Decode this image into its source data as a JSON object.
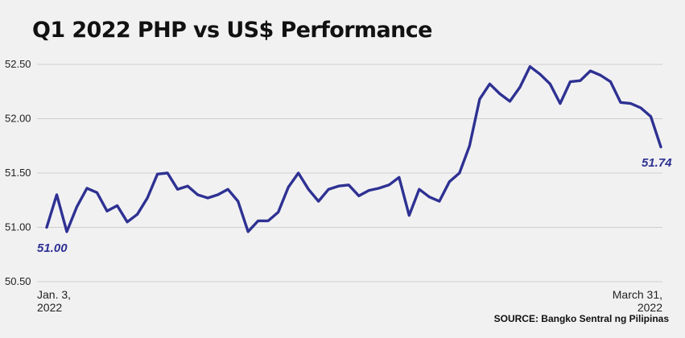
{
  "chart_data": {
    "type": "line",
    "title": "Q1 2022 PHP vs US$ Performance",
    "xlabel": "",
    "ylabel": "",
    "ylim": [
      50.5,
      52.5
    ],
    "yticks": [
      "52.50",
      "52.00",
      "51.50",
      "51.00",
      "50.50"
    ],
    "x_start_label": [
      "Jan. 3,",
      "2022"
    ],
    "x_end_label": [
      "March 31,",
      "2022"
    ],
    "grid": true,
    "line_color": "#2e3192",
    "start_label": "51.00",
    "end_label": "51.74",
    "values": [
      51.0,
      51.3,
      50.96,
      51.19,
      51.36,
      51.32,
      51.15,
      51.2,
      51.05,
      51.12,
      51.27,
      51.49,
      51.5,
      51.35,
      51.38,
      51.3,
      51.27,
      51.3,
      51.35,
      51.24,
      50.96,
      51.06,
      51.06,
      51.14,
      51.37,
      51.5,
      51.35,
      51.24,
      51.35,
      51.38,
      51.39,
      51.29,
      51.34,
      51.36,
      51.39,
      51.46,
      51.11,
      51.35,
      51.28,
      51.24,
      51.42,
      51.5,
      51.75,
      52.18,
      52.32,
      52.23,
      52.16,
      52.29,
      52.48,
      52.41,
      52.32,
      52.14,
      52.34,
      52.35,
      52.44,
      52.4,
      52.34,
      52.15,
      52.14,
      52.1,
      52.02,
      51.74
    ]
  },
  "source": {
    "text": "SOURCE: Bangko Sentral ng Pilipinas"
  }
}
